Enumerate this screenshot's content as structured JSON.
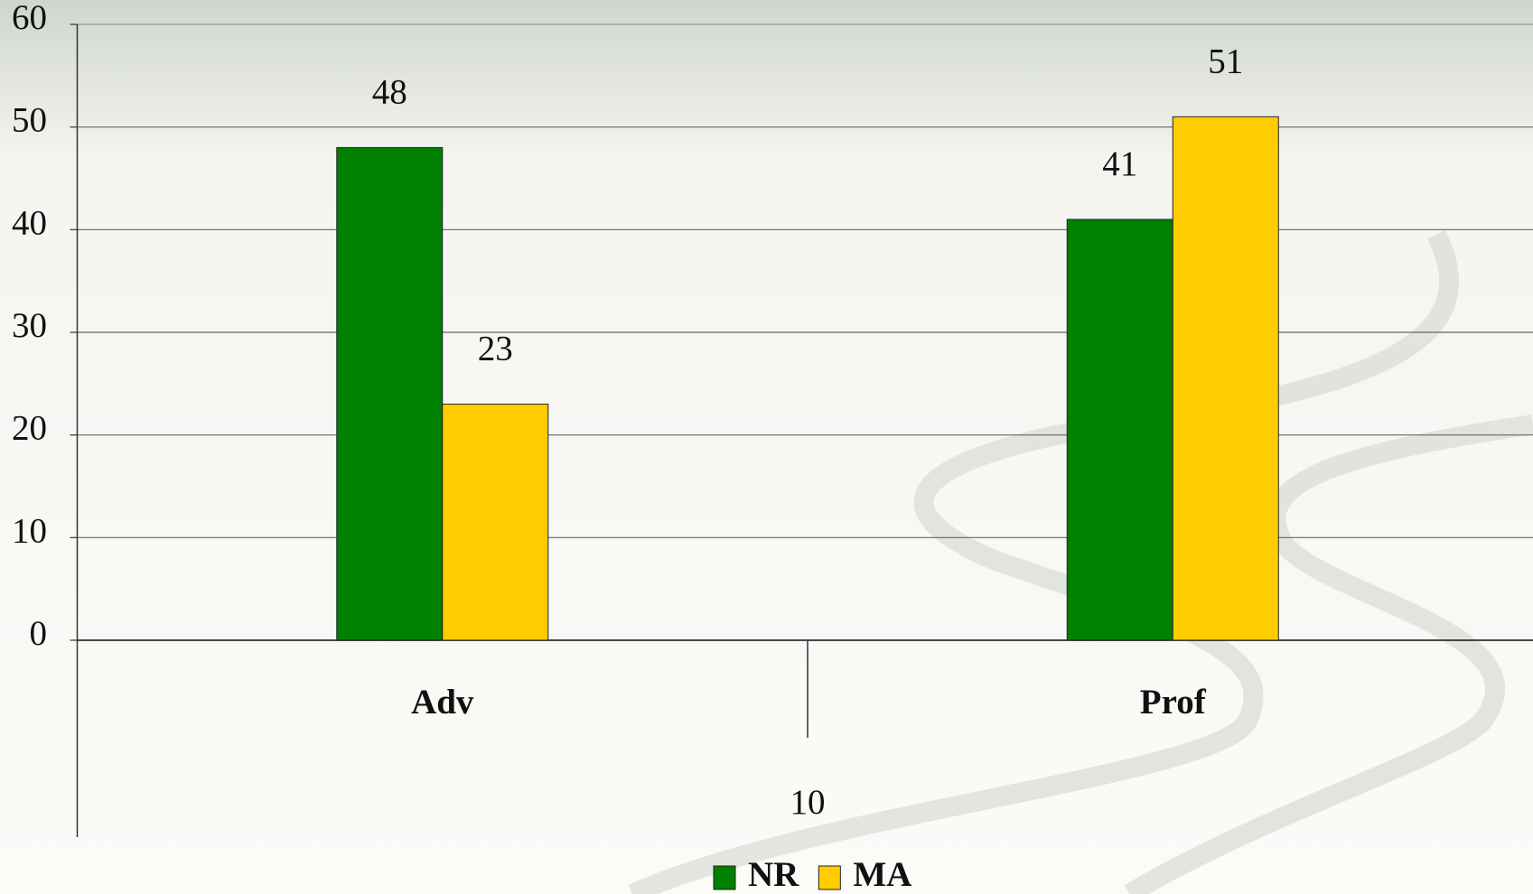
{
  "chart_data": {
    "type": "bar",
    "categories": [
      "Adv",
      "Prof"
    ],
    "series": [
      {
        "name": "NR",
        "color": "#008000",
        "values": [
          48,
          41
        ]
      },
      {
        "name": "MA",
        "color": "#ffcc00",
        "values": [
          23,
          51
        ]
      }
    ],
    "xlabel": "10",
    "ylim": [
      0,
      60
    ],
    "yticks": [
      0,
      10,
      20,
      30,
      40,
      50,
      60
    ],
    "grid": true,
    "legend": "bottom"
  }
}
